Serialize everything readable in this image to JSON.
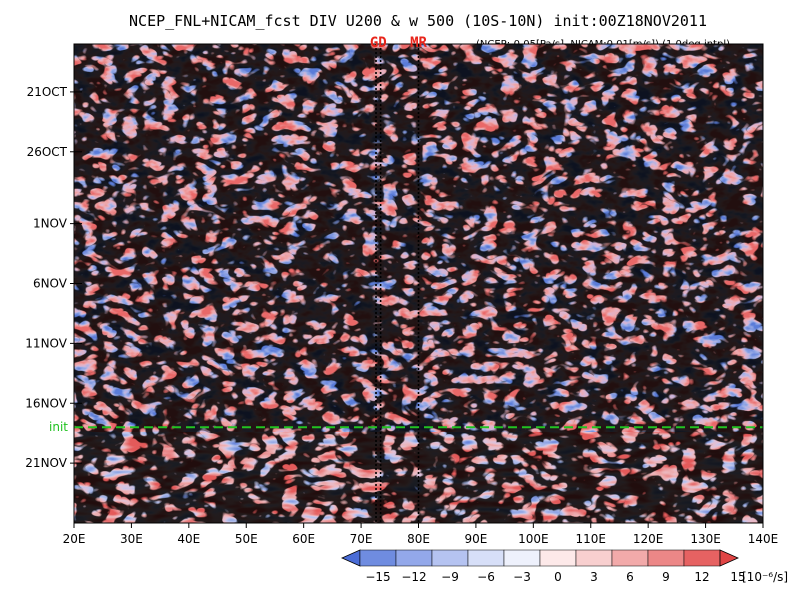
{
  "chart_data": {
    "type": "heatmap",
    "title": "NCEP_FNL+NICAM_fcst DIV U200 & w 500 (10S-10N) init:00Z18NOV2011",
    "subtitle": "(NCEP:-0.05[Pa/s], NICAM:0.01[m/s]) (1.0deg intpl)",
    "x_axis": {
      "range": [
        20,
        140
      ],
      "ticks": [
        20,
        30,
        40,
        50,
        60,
        70,
        80,
        90,
        100,
        110,
        120,
        130,
        140
      ],
      "tick_labels": [
        "20E",
        "30E",
        "40E",
        "50E",
        "60E",
        "70E",
        "80E",
        "90E",
        "100E",
        "110E",
        "120E",
        "130E",
        "140E"
      ]
    },
    "y_axis": {
      "reversed": true,
      "range": [
        "2011-10-17",
        "2011-11-26"
      ],
      "ticks": [
        "2011-10-21",
        "2011-10-26",
        "2011-11-01",
        "2011-11-06",
        "2011-11-11",
        "2011-11-16",
        "2011-11-21"
      ],
      "tick_labels": [
        "21OCT",
        "26OCT",
        "1NOV",
        "6NOV",
        "11NOV",
        "16NOV",
        "21NOV"
      ]
    },
    "init_line": {
      "date": "2011-11-18",
      "label": "init",
      "color": "#22c322"
    },
    "station_markers": [
      {
        "label": "GD",
        "lons": [
          72.6,
          73.4
        ]
      },
      {
        "label": "MR",
        "lons": [
          80.0
        ]
      }
    ],
    "colorbar": {
      "levels": [
        -15,
        -12,
        -9,
        -6,
        -3,
        0,
        3,
        6,
        9,
        12,
        15
      ],
      "unit": "[10⁻⁶/s]",
      "colors": [
        "#4a6cd6",
        "#6f8ce0",
        "#93a8ea",
        "#b5c3f1",
        "#d7dff8",
        "#eef1fc",
        "#fde9e9",
        "#f8cfcf",
        "#f2aaaa",
        "#ec8787",
        "#e66262",
        "#e04545"
      ]
    },
    "grid": false
  }
}
